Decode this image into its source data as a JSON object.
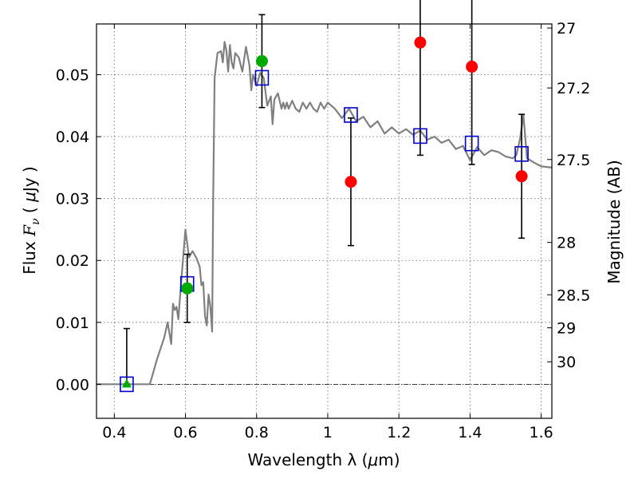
{
  "chart_data": {
    "type": "scatter",
    "xlabel_prefix": "Wavelength  λ (",
    "xlabel_mu": "μ",
    "xlabel_suffix": "m)",
    "ylabel_prefix": "Flux  ",
    "ylabel_sym": "F",
    "ylabel_sub": "ν",
    "ylabel_unit_pre": "  ( ",
    "ylabel_mu": "μ",
    "ylabel_unit_post": "Jy )",
    "y2label": "Magnitude (AB)",
    "xlim": [
      0.35,
      1.63
    ],
    "ylim": [
      -0.0055,
      0.0582
    ],
    "grid": true,
    "x_ticks": [
      {
        "value": 0.4,
        "label": "0.4"
      },
      {
        "value": 0.6,
        "label": "0.6"
      },
      {
        "value": 0.8,
        "label": "0.8"
      },
      {
        "value": 1.0,
        "label": "1"
      },
      {
        "value": 1.2,
        "label": "1.2"
      },
      {
        "value": 1.4,
        "label": "1.4"
      },
      {
        "value": 1.6,
        "label": "1.6"
      }
    ],
    "y_ticks": [
      {
        "value": 0.0,
        "label": "0.00"
      },
      {
        "value": 0.01,
        "label": "0.01"
      },
      {
        "value": 0.02,
        "label": "0.02"
      },
      {
        "value": 0.03,
        "label": "0.03"
      },
      {
        "value": 0.04,
        "label": "0.04"
      },
      {
        "value": 0.05,
        "label": "0.05"
      }
    ],
    "mag_ticks": [
      {
        "value": 27.0,
        "label": "27"
      },
      {
        "value": 27.2,
        "label": "27.2"
      },
      {
        "value": 27.5,
        "label": "27.5"
      },
      {
        "value": 28.0,
        "label": "28"
      },
      {
        "value": 28.5,
        "label": "28.5"
      },
      {
        "value": 29.0,
        "label": "29"
      },
      {
        "value": 30.0,
        "label": "30"
      }
    ],
    "model_spectrum": {
      "color": "#808080",
      "x": [
        0.35,
        0.5,
        0.52,
        0.54,
        0.55,
        0.56,
        0.565,
        0.57,
        0.575,
        0.58,
        0.59,
        0.6,
        0.61,
        0.62,
        0.63,
        0.64,
        0.645,
        0.65,
        0.655,
        0.66,
        0.665,
        0.67,
        0.675,
        0.678,
        0.682,
        0.69,
        0.7,
        0.705,
        0.71,
        0.715,
        0.72,
        0.725,
        0.73,
        0.735,
        0.74,
        0.75,
        0.76,
        0.77,
        0.78,
        0.785,
        0.79,
        0.8,
        0.81,
        0.82,
        0.83,
        0.84,
        0.845,
        0.85,
        0.86,
        0.87,
        0.875,
        0.88,
        0.885,
        0.89,
        0.9,
        0.91,
        0.92,
        0.93,
        0.94,
        0.95,
        0.96,
        0.97,
        0.98,
        0.99,
        1.0,
        1.02,
        1.04,
        1.06,
        1.08,
        1.1,
        1.12,
        1.14,
        1.16,
        1.18,
        1.2,
        1.22,
        1.24,
        1.26,
        1.28,
        1.3,
        1.32,
        1.34,
        1.36,
        1.38,
        1.4,
        1.42,
        1.44,
        1.46,
        1.48,
        1.5,
        1.52,
        1.53,
        1.54,
        1.55,
        1.56,
        1.58,
        1.6,
        1.63
      ],
      "y": [
        0.0,
        0.0,
        0.004,
        0.0075,
        0.01,
        0.0065,
        0.013,
        0.012,
        0.0125,
        0.0105,
        0.018,
        0.025,
        0.0205,
        0.0215,
        0.0205,
        0.019,
        0.016,
        0.0165,
        0.011,
        0.0095,
        0.0145,
        0.0125,
        0.0085,
        0.03,
        0.0495,
        0.0535,
        0.0538,
        0.052,
        0.0553,
        0.054,
        0.0505,
        0.0548,
        0.052,
        0.051,
        0.0535,
        0.0528,
        0.0505,
        0.0545,
        0.0515,
        0.0475,
        0.05,
        0.0482,
        0.0503,
        0.0495,
        0.045,
        0.0465,
        0.042,
        0.046,
        0.047,
        0.0445,
        0.0455,
        0.0445,
        0.0455,
        0.0445,
        0.0458,
        0.0445,
        0.044,
        0.0455,
        0.0445,
        0.0455,
        0.0445,
        0.044,
        0.0455,
        0.0445,
        0.0455,
        0.0445,
        0.043,
        0.0445,
        0.0425,
        0.0432,
        0.0415,
        0.0425,
        0.0405,
        0.0415,
        0.0405,
        0.0412,
        0.0403,
        0.041,
        0.0395,
        0.04,
        0.039,
        0.0395,
        0.038,
        0.0385,
        0.0362,
        0.0383,
        0.037,
        0.0378,
        0.0375,
        0.0368,
        0.0365,
        0.037,
        0.0395,
        0.0435,
        0.0365,
        0.0358,
        0.0352,
        0.035
      ]
    },
    "model_photometry": {
      "color": "#0000cc",
      "x": [
        0.435,
        0.605,
        0.815,
        1.065,
        1.26,
        1.405,
        1.545
      ],
      "y": [
        0.0,
        0.0162,
        0.0495,
        0.0435,
        0.0401,
        0.0389,
        0.0372
      ]
    },
    "detections": {
      "color": "#00aa00",
      "x": [
        0.605,
        0.815
      ],
      "y": [
        0.0155,
        0.0522
      ],
      "yerr": [
        0.0055,
        0.0075
      ]
    },
    "upper_limit": {
      "color": "#00aa00",
      "x": 0.435,
      "y": 0.0,
      "yerr_top": 0.009
    },
    "measurements": {
      "color": "#ff0000",
      "x": [
        1.065,
        1.26,
        1.405,
        1.545
      ],
      "y": [
        0.0327,
        0.0552,
        0.0513,
        0.0336
      ],
      "yerr": [
        0.0103,
        0.0182,
        0.0158,
        0.01
      ]
    }
  }
}
